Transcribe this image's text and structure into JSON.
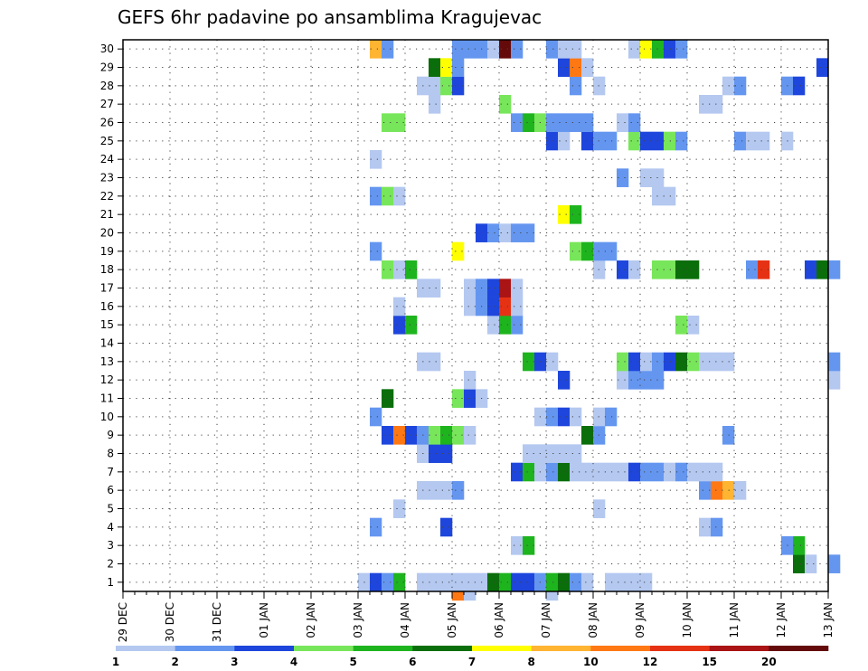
{
  "chart_data": {
    "type": "heatmap",
    "title": "GEFS 6hr padavine po ansamblima Kragujevac",
    "xlabel": "",
    "ylabel": "",
    "x_ticks": [
      "29 DEC",
      "30 DEC",
      "31 DEC",
      "01 JAN",
      "02 JAN",
      "03 JAN",
      "04 JAN",
      "05 JAN",
      "06 JAN",
      "07 JAN",
      "08 JAN",
      "09 JAN",
      "10 JAN",
      "11 JAN",
      "12 JAN",
      "13 JAN"
    ],
    "y_ticks": [
      "1",
      "2",
      "3",
      "4",
      "5",
      "6",
      "7",
      "8",
      "9",
      "10",
      "11",
      "12",
      "13",
      "14",
      "15",
      "16",
      "17",
      "18",
      "19",
      "20",
      "21",
      "22",
      "23",
      "24",
      "25",
      "26",
      "27",
      "28",
      "29",
      "30"
    ],
    "time_step_hours": 6,
    "grid": "dotted",
    "colorbar": {
      "labels": [
        "1",
        "2",
        "3",
        "4",
        "5",
        "6",
        "7",
        "8",
        "10",
        "12",
        "15",
        "20"
      ],
      "colors": [
        "#b4c8f0",
        "#6496f0",
        "#1e46dc",
        "#78e65a",
        "#1eb41e",
        "#0a6e0a",
        "#ffff00",
        "#ffb432",
        "#ff7814",
        "#e63214",
        "#aa1414",
        "#640a0a"
      ],
      "position": "bottom"
    },
    "cells": [
      [
        1,
        20,
        1
      ],
      [
        1,
        21,
        3
      ],
      [
        1,
        22,
        2
      ],
      [
        1,
        23,
        5
      ],
      [
        1,
        25,
        1
      ],
      [
        1,
        26,
        1
      ],
      [
        1,
        27,
        1
      ],
      [
        1,
        28,
        1
      ],
      [
        1,
        29,
        1
      ],
      [
        1,
        30,
        1
      ],
      [
        1,
        31,
        6
      ],
      [
        1,
        32,
        5
      ],
      [
        1,
        33,
        3
      ],
      [
        1,
        34,
        3
      ],
      [
        1,
        35,
        2
      ],
      [
        1,
        36,
        5
      ],
      [
        1,
        37,
        6
      ],
      [
        1,
        38,
        2
      ],
      [
        1,
        39,
        1
      ],
      [
        1,
        41,
        1
      ],
      [
        1,
        42,
        1
      ],
      [
        1,
        43,
        1
      ],
      [
        1,
        44,
        1
      ],
      [
        2,
        57,
        6
      ],
      [
        2,
        58,
        1
      ],
      [
        2,
        60,
        2
      ],
      [
        3,
        33,
        1
      ],
      [
        3,
        34,
        5
      ],
      [
        3,
        56,
        2
      ],
      [
        3,
        57,
        5
      ],
      [
        4,
        21,
        2
      ],
      [
        4,
        27,
        3
      ],
      [
        4,
        49,
        1
      ],
      [
        4,
        50,
        2
      ],
      [
        5,
        23,
        1
      ],
      [
        5,
        40,
        1
      ],
      [
        6,
        25,
        1
      ],
      [
        6,
        26,
        1
      ],
      [
        6,
        27,
        1
      ],
      [
        6,
        28,
        2
      ],
      [
        6,
        49,
        2
      ],
      [
        6,
        50,
        9
      ],
      [
        6,
        51,
        8
      ],
      [
        6,
        52,
        1
      ],
      [
        7,
        33,
        3
      ],
      [
        7,
        34,
        5
      ],
      [
        7,
        35,
        1
      ],
      [
        7,
        36,
        2
      ],
      [
        7,
        37,
        6
      ],
      [
        7,
        38,
        1
      ],
      [
        7,
        39,
        1
      ],
      [
        7,
        40,
        1
      ],
      [
        7,
        41,
        1
      ],
      [
        7,
        42,
        1
      ],
      [
        7,
        43,
        3
      ],
      [
        7,
        44,
        2
      ],
      [
        7,
        45,
        2
      ],
      [
        7,
        46,
        1
      ],
      [
        7,
        47,
        2
      ],
      [
        7,
        48,
        1
      ],
      [
        7,
        49,
        1
      ],
      [
        7,
        50,
        1
      ],
      [
        8,
        25,
        1
      ],
      [
        8,
        26,
        3
      ],
      [
        8,
        27,
        3
      ],
      [
        8,
        34,
        1
      ],
      [
        8,
        35,
        1
      ],
      [
        8,
        36,
        1
      ],
      [
        8,
        37,
        1
      ],
      [
        8,
        38,
        1
      ],
      [
        9,
        22,
        3
      ],
      [
        9,
        23,
        9
      ],
      [
        9,
        24,
        3
      ],
      [
        9,
        25,
        2
      ],
      [
        9,
        26,
        4
      ],
      [
        9,
        27,
        5
      ],
      [
        9,
        28,
        4
      ],
      [
        9,
        29,
        1
      ],
      [
        9,
        39,
        6
      ],
      [
        9,
        40,
        2
      ],
      [
        9,
        51,
        2
      ],
      [
        10,
        21,
        2
      ],
      [
        10,
        35,
        1
      ],
      [
        10,
        36,
        2
      ],
      [
        10,
        37,
        3
      ],
      [
        10,
        38,
        1
      ],
      [
        10,
        40,
        1
      ],
      [
        10,
        41,
        2
      ],
      [
        11,
        22,
        6
      ],
      [
        11,
        28,
        4
      ],
      [
        11,
        29,
        3
      ],
      [
        11,
        30,
        1
      ],
      [
        12,
        29,
        1
      ],
      [
        12,
        37,
        3
      ],
      [
        12,
        42,
        1
      ],
      [
        12,
        43,
        2
      ],
      [
        12,
        44,
        2
      ],
      [
        12,
        45,
        2
      ],
      [
        12,
        60,
        1
      ],
      [
        13,
        25,
        1
      ],
      [
        13,
        26,
        1
      ],
      [
        13,
        34,
        5
      ],
      [
        13,
        35,
        3
      ],
      [
        13,
        36,
        1
      ],
      [
        13,
        42,
        4
      ],
      [
        13,
        43,
        3
      ],
      [
        13,
        44,
        1
      ],
      [
        13,
        45,
        2
      ],
      [
        13,
        46,
        3
      ],
      [
        13,
        47,
        6
      ],
      [
        13,
        48,
        4
      ],
      [
        13,
        49,
        1
      ],
      [
        13,
        50,
        1
      ],
      [
        13,
        51,
        1
      ],
      [
        13,
        60,
        2
      ],
      [
        15,
        23,
        3
      ],
      [
        15,
        24,
        5
      ],
      [
        15,
        31,
        1
      ],
      [
        15,
        32,
        5
      ],
      [
        15,
        33,
        2
      ],
      [
        15,
        47,
        4
      ],
      [
        15,
        48,
        1
      ],
      [
        16,
        23,
        1
      ],
      [
        16,
        29,
        1
      ],
      [
        16,
        30,
        2
      ],
      [
        16,
        31,
        3
      ],
      [
        16,
        32,
        10
      ],
      [
        16,
        33,
        1
      ],
      [
        17,
        25,
        1
      ],
      [
        17,
        26,
        1
      ],
      [
        17,
        29,
        1
      ],
      [
        17,
        30,
        2
      ],
      [
        17,
        31,
        3
      ],
      [
        17,
        32,
        11
      ],
      [
        17,
        33,
        1
      ],
      [
        18,
        22,
        4
      ],
      [
        18,
        23,
        1
      ],
      [
        18,
        24,
        5
      ],
      [
        18,
        40,
        1
      ],
      [
        18,
        42,
        3
      ],
      [
        18,
        43,
        1
      ],
      [
        18,
        45,
        4
      ],
      [
        18,
        46,
        4
      ],
      [
        18,
        47,
        6
      ],
      [
        18,
        48,
        6
      ],
      [
        18,
        53,
        2
      ],
      [
        18,
        54,
        10
      ],
      [
        18,
        58,
        3
      ],
      [
        18,
        59,
        6
      ],
      [
        18,
        60,
        2
      ],
      [
        19,
        21,
        2
      ],
      [
        19,
        28,
        7
      ],
      [
        19,
        38,
        4
      ],
      [
        19,
        39,
        5
      ],
      [
        19,
        40,
        2
      ],
      [
        19,
        41,
        2
      ],
      [
        20,
        30,
        3
      ],
      [
        20,
        31,
        2
      ],
      [
        20,
        32,
        1
      ],
      [
        20,
        33,
        2
      ],
      [
        20,
        34,
        2
      ],
      [
        21,
        37,
        7
      ],
      [
        21,
        38,
        5
      ],
      [
        22,
        21,
        2
      ],
      [
        22,
        22,
        4
      ],
      [
        22,
        23,
        1
      ],
      [
        22,
        45,
        1
      ],
      [
        22,
        46,
        1
      ],
      [
        23,
        42,
        2
      ],
      [
        23,
        44,
        1
      ],
      [
        23,
        45,
        1
      ],
      [
        24,
        21,
        1
      ],
      [
        25,
        36,
        3
      ],
      [
        25,
        37,
        1
      ],
      [
        25,
        39,
        3
      ],
      [
        25,
        40,
        2
      ],
      [
        25,
        41,
        2
      ],
      [
        25,
        43,
        4
      ],
      [
        25,
        44,
        3
      ],
      [
        25,
        45,
        3
      ],
      [
        25,
        46,
        4
      ],
      [
        25,
        47,
        2
      ],
      [
        25,
        52,
        2
      ],
      [
        25,
        53,
        1
      ],
      [
        25,
        54,
        1
      ],
      [
        25,
        56,
        1
      ],
      [
        26,
        22,
        4
      ],
      [
        26,
        23,
        4
      ],
      [
        26,
        33,
        2
      ],
      [
        26,
        34,
        5
      ],
      [
        26,
        35,
        4
      ],
      [
        26,
        36,
        2
      ],
      [
        26,
        37,
        2
      ],
      [
        26,
        38,
        2
      ],
      [
        26,
        39,
        2
      ],
      [
        26,
        42,
        1
      ],
      [
        26,
        43,
        2
      ],
      [
        27,
        26,
        1
      ],
      [
        27,
        32,
        4
      ],
      [
        27,
        49,
        1
      ],
      [
        27,
        50,
        1
      ],
      [
        28,
        25,
        1
      ],
      [
        28,
        26,
        1
      ],
      [
        28,
        27,
        4
      ],
      [
        28,
        28,
        3
      ],
      [
        28,
        38,
        2
      ],
      [
        28,
        40,
        1
      ],
      [
        28,
        51,
        1
      ],
      [
        28,
        52,
        2
      ],
      [
        28,
        56,
        2
      ],
      [
        28,
        57,
        3
      ],
      [
        29,
        26,
        6
      ],
      [
        29,
        27,
        7
      ],
      [
        29,
        28,
        2
      ],
      [
        29,
        37,
        3
      ],
      [
        29,
        38,
        9
      ],
      [
        29,
        39,
        1
      ],
      [
        29,
        59,
        3
      ],
      [
        30,
        21,
        8
      ],
      [
        30,
        22,
        2
      ],
      [
        30,
        28,
        2
      ],
      [
        30,
        29,
        2
      ],
      [
        30,
        30,
        2
      ],
      [
        30,
        31,
        1
      ],
      [
        30,
        32,
        12
      ],
      [
        30,
        33,
        2
      ],
      [
        30,
        36,
        2
      ],
      [
        30,
        37,
        1
      ],
      [
        30,
        38,
        1
      ],
      [
        30,
        43,
        1
      ],
      [
        30,
        44,
        7
      ],
      [
        30,
        45,
        5
      ],
      [
        30,
        46,
        3
      ],
      [
        30,
        47,
        2
      ]
    ],
    "below_axis_marks": [
      [
        0,
        28,
        9
      ],
      [
        0,
        29,
        1
      ],
      [
        0,
        36,
        1
      ]
    ]
  }
}
